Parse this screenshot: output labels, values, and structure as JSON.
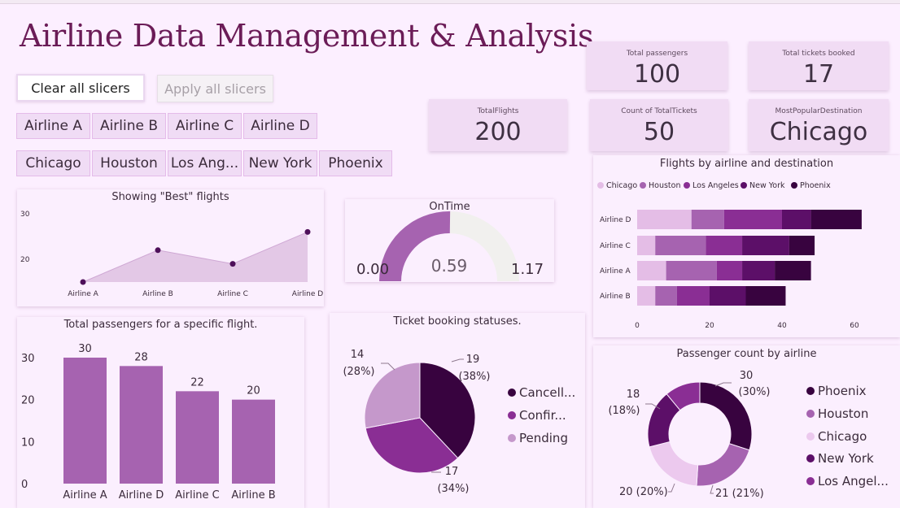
{
  "title": "Airline Data Management & Analysis",
  "buttons": {
    "clear": "Clear all slicers",
    "apply": "Apply all slicers"
  },
  "slicers": {
    "airlines": [
      "Airline A",
      "Airline B",
      "Airline C",
      "Airline D"
    ],
    "destinations": [
      "Chicago",
      "Houston",
      "Los Ang...",
      "New York",
      "Phoenix"
    ]
  },
  "kpis": {
    "total_passengers": {
      "label": "Total passengers",
      "value": "100"
    },
    "total_tickets_booked": {
      "label": "Total tickets booked",
      "value": "17"
    },
    "total_flights": {
      "label": "TotalFlights",
      "value": "200"
    },
    "count_total_tickets": {
      "label": "Count of TotalTickets",
      "value": "50"
    },
    "most_popular_destination": {
      "label": "MostPopularDestination",
      "value": "Chicago"
    }
  },
  "colors": {
    "background": "#fcefff",
    "title": "#6b1c57",
    "card": "#fbeffe",
    "slicer": "#f0dcf5",
    "kpi": "#f1dcf4",
    "bar": "#a663b0",
    "gauge_fill": "#a663b0",
    "gauge_track": "#f1f0ee",
    "area_fill": "#e3c8e6",
    "area_point": "#4e0f5a"
  },
  "chart_data": [
    {
      "id": "best_flights",
      "type": "area",
      "title": "Showing \"Best\" flights",
      "categories": [
        "Airline A",
        "Airline B",
        "Airline C",
        "Airline D"
      ],
      "values": [
        15,
        22,
        19,
        26
      ],
      "y_ticks": [
        20,
        30
      ],
      "ylim": [
        15,
        30
      ]
    },
    {
      "id": "ontime",
      "type": "gauge",
      "title": "OnTime",
      "value": 0.59,
      "value_label": "0.59",
      "min": 0,
      "max": 1.17,
      "min_label": "0.00",
      "max_label": "1.17"
    },
    {
      "id": "flights_by_airline_destination",
      "type": "bar",
      "orientation": "horizontal",
      "stacked": true,
      "title": "Flights by airline and destination",
      "legend": [
        "Chicago",
        "Houston",
        "Los Angeles",
        "New York",
        "Phoenix"
      ],
      "legend_colors": [
        "#e4bde6",
        "#a663b0",
        "#8a2e94",
        "#5c0f68",
        "#38033f"
      ],
      "categories": [
        "Airline D",
        "Airline C",
        "Airline A",
        "Airline B"
      ],
      "series": [
        {
          "name": "Chicago",
          "values": [
            15,
            5,
            8,
            5
          ]
        },
        {
          "name": "Houston",
          "values": [
            9,
            14,
            14,
            6
          ]
        },
        {
          "name": "Los Angeles",
          "values": [
            16,
            10,
            7,
            9
          ]
        },
        {
          "name": "New York",
          "values": [
            8,
            13,
            9,
            10
          ]
        },
        {
          "name": "Phoenix",
          "values": [
            14,
            7,
            10,
            11
          ]
        }
      ],
      "x_ticks": [
        0,
        20,
        40,
        60
      ],
      "xlim": [
        0,
        62
      ]
    },
    {
      "id": "total_passengers_flight",
      "type": "bar",
      "title": "Total passengers for a specific flight.",
      "categories": [
        "Airline A",
        "Airline D",
        "Airline C",
        "Airline B"
      ],
      "values": [
        30,
        28,
        22,
        20
      ],
      "value_labels": [
        "30",
        "28",
        "22",
        "20"
      ],
      "y_ticks": [
        0,
        10,
        20,
        30
      ],
      "ylim": [
        0,
        30
      ]
    },
    {
      "id": "ticket_booking_statuses",
      "type": "pie",
      "title": "Ticket booking statuses.",
      "slices": [
        {
          "name": "Cancelled",
          "legend_label": "Cancell...",
          "value": 19,
          "label": "19",
          "pct_label": "(38%)",
          "color": "#38033f"
        },
        {
          "name": "Confirmed",
          "legend_label": "Confir...",
          "value": 17,
          "label": "17",
          "pct_label": "(34%)",
          "color": "#8a2e94"
        },
        {
          "name": "Pending",
          "legend_label": "Pending",
          "value": 14,
          "label": "14",
          "pct_label": "(28%)",
          "color": "#c598cb"
        }
      ]
    },
    {
      "id": "passenger_count_airline",
      "type": "pie",
      "donut": true,
      "title": "Passenger count by airline",
      "slices": [
        {
          "name": "Phoenix",
          "legend_label": "Phoenix",
          "value": 30,
          "label": "30",
          "pct_label": "(30%)",
          "color": "#38033f"
        },
        {
          "name": "Houston",
          "legend_label": "Houston",
          "value": 21,
          "label": "21 (21%)",
          "pct_label": "",
          "color": "#a663b0"
        },
        {
          "name": "Chicago",
          "legend_label": "Chicago",
          "value": 20,
          "label": "20 (20%)",
          "pct_label": "",
          "color": "#ecc9ee"
        },
        {
          "name": "New York",
          "legend_label": "New York",
          "value": 18,
          "label": "18",
          "pct_label": "(18%)",
          "color": "#5c0f68"
        },
        {
          "name": "Los Angeles",
          "legend_label": "Los Angel...",
          "value": 11,
          "label": "",
          "pct_label": "",
          "color": "#8a2e94"
        }
      ]
    }
  ]
}
